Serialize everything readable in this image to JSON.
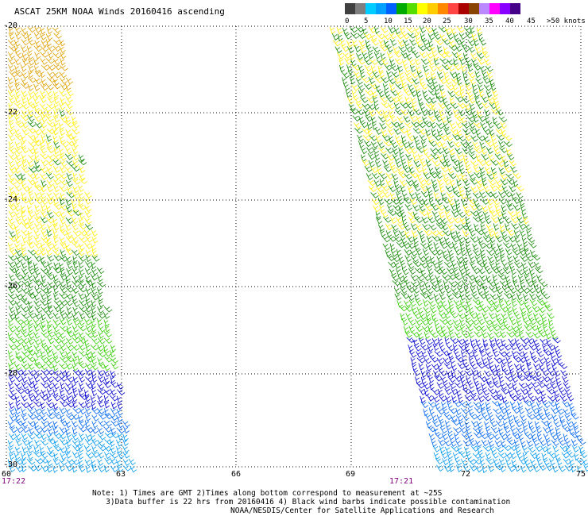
{
  "title": "ASCAT 25KM NOAA Winds 20160416 ascending",
  "legend": {
    "colors": [
      "#404040",
      "#7f7f7f",
      "#00ccff",
      "#00a0ff",
      "#0060ff",
      "#00aa00",
      "#55dd00",
      "#ffff00",
      "#ffcc00",
      "#ff8800",
      "#ff4444",
      "#aa0000",
      "#884400",
      "#bb88ff",
      "#ff00ff",
      "#8800ff",
      "#440088"
    ],
    "labels": [
      "0",
      "5",
      "10",
      "15",
      "20",
      "25",
      "30",
      "35",
      "40",
      "45",
      ">50 knots"
    ]
  },
  "axes": {
    "lat_labels": [
      "-20",
      "-22",
      "-24",
      "-26",
      "-28",
      "-30"
    ],
    "lon_labels": [
      "60",
      "63",
      "66",
      "69",
      "72",
      "75"
    ]
  },
  "times": [
    "17:22",
    "17:21"
  ],
  "notes": {
    "line1": "Note: 1) Times are GMT 2)Times along bottom correspond to measurement at ~25S",
    "line2": "3)Data buffer is 22 hrs from 20160416 4) Black wind barbs indicate possible contamination"
  },
  "credit": "NOAA/NESDIS/Center for Satellite Applications and Research",
  "wind_colors": {
    "orange": "#e0a000",
    "yellow": "#ffee00",
    "dark_green": "#118800",
    "green": "#33cc00",
    "dark_blue": "#0000cc",
    "blue": "#0066ee",
    "light_blue": "#0099ee"
  }
}
